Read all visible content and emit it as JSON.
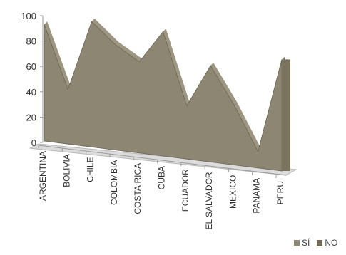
{
  "chart_data": {
    "type": "area",
    "style": "3d-area",
    "categories": [
      "ARGENTINA",
      "BOLIVIA",
      "CHILE",
      "COLOMBIA",
      "COSTA RICA",
      "CUBA",
      "ECUADOR",
      "EL SALVADOR",
      "MEXICO",
      "PANAMA",
      "PERU"
    ],
    "series": [
      {
        "name": "SÍ",
        "values": [
          92,
          43,
          99,
          83,
          72,
          98,
          42,
          76,
          47,
          13,
          88
        ],
        "color": "#8c8673"
      },
      {
        "name": "NO",
        "values": [
          8,
          57,
          1,
          17,
          28,
          2,
          58,
          24,
          53,
          87,
          12
        ],
        "color": "#6e6855"
      }
    ],
    "ylim": [
      0,
      100
    ],
    "yticks": [
      "0",
      "20",
      "40",
      "60",
      "80",
      "100"
    ],
    "grid": false,
    "legend_position": "bottom-right"
  },
  "legend": {
    "items": [
      "SÍ",
      "NO"
    ]
  }
}
